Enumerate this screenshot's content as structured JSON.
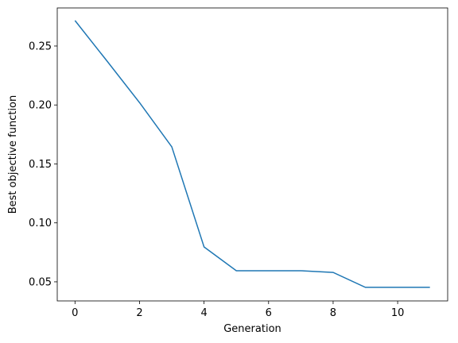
{
  "chart_data": {
    "type": "line",
    "xlabel": "Generation",
    "ylabel": "Best objective function",
    "x": [
      0,
      1,
      2,
      3,
      4,
      5,
      6,
      7,
      8,
      9,
      10,
      11
    ],
    "series": [
      {
        "color": "#1f77b4",
        "values": [
          0.2716,
          0.237,
          0.202,
          0.1645,
          0.0796,
          0.0594,
          0.0594,
          0.0594,
          0.058,
          0.0453,
          0.0453,
          0.0453
        ]
      }
    ],
    "xlim": [
      -0.55,
      11.55
    ],
    "xticks": [
      0,
      2,
      4,
      6,
      8,
      10
    ],
    "ylim": [
      0.0338,
      0.2823
    ],
    "yticks": [
      {
        "value": 0.05,
        "label": "0.05"
      },
      {
        "value": 0.1,
        "label": "0.10"
      },
      {
        "value": 0.15,
        "label": "0.15"
      },
      {
        "value": 0.2,
        "label": "0.20"
      },
      {
        "value": 0.25,
        "label": "0.25"
      }
    ],
    "grid": false
  }
}
